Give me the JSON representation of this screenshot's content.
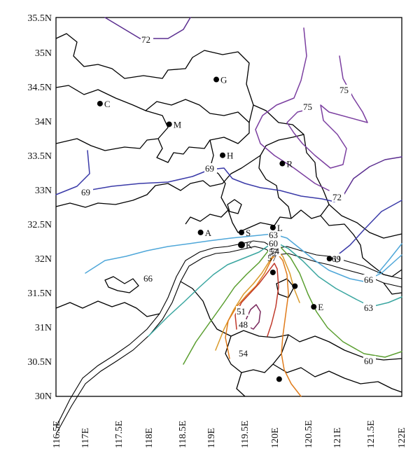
{
  "map": {
    "y_ticks": [
      "35.5N",
      "35N",
      "34.5N",
      "34N",
      "33.5N",
      "33N",
      "32.5N",
      "32N",
      "31.5N",
      "31N",
      "30.5N",
      "30N"
    ],
    "x_ticks": [
      "116.5E",
      "117E",
      "117.5E",
      "118E",
      "118.5E",
      "119E",
      "119.5E",
      "120E",
      "120.5E",
      "121E",
      "121.5E",
      "122E"
    ],
    "lon_range": [
      116.5,
      122.0
    ],
    "lat_range": [
      30.0,
      35.5
    ],
    "stations": [
      {
        "label": "G",
        "lon": 119.05,
        "lat": 34.6
      },
      {
        "label": "C",
        "lon": 117.2,
        "lat": 34.25
      },
      {
        "label": "M",
        "lon": 118.3,
        "lat": 33.95
      },
      {
        "label": "H",
        "lon": 119.15,
        "lat": 33.5
      },
      {
        "label": "R",
        "lon": 120.1,
        "lat": 33.38
      },
      {
        "label": "A",
        "lon": 118.8,
        "lat": 32.38
      },
      {
        "label": "S",
        "lon": 119.45,
        "lat": 32.38
      },
      {
        "label": "L",
        "lon": 119.95,
        "lat": 32.45
      },
      {
        "label": "K",
        "lon": 119.45,
        "lat": 32.2
      },
      {
        "label": "U",
        "lon": 120.85,
        "lat": 32.0
      },
      {
        "label": "",
        "lon": 119.95,
        "lat": 31.8
      },
      {
        "label": "",
        "lon": 120.3,
        "lat": 31.6
      },
      {
        "label": "E",
        "lon": 120.6,
        "lat": 31.3
      },
      {
        "label": "",
        "lon": 120.05,
        "lat": 30.25
      }
    ],
    "contour_labels": [
      "72",
      "75",
      "75",
      "69",
      "69",
      "72",
      "63",
      "60",
      "57",
      "54",
      "57",
      "69",
      "66",
      "66",
      "63",
      "60",
      "51",
      "48",
      "54"
    ],
    "contour_colors": {
      "c48": "#7a2a5e",
      "c51": "#c0392b",
      "c54": "#e07b1a",
      "c57": "#d99a2b",
      "c60": "#5a9e2f",
      "c63": "#3aa6a0",
      "c66": "#4fa7d9",
      "c69": "#3a3aa8",
      "c72": "#5a2d8f",
      "c75": "#7b3fa0"
    }
  }
}
